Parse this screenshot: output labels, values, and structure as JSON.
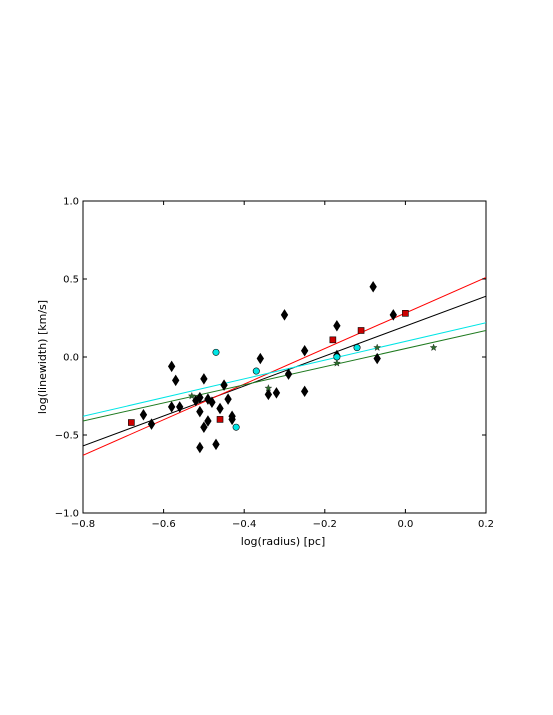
{
  "chart_data": {
    "type": "scatter",
    "title": "",
    "xlabel": "log(radius) [pc]",
    "ylabel": "log(linewidth) [km/s]",
    "xlim": [
      -0.8,
      0.2
    ],
    "ylim": [
      -1.0,
      1.0
    ],
    "xticks": [
      -0.8,
      -0.6,
      -0.4,
      -0.2,
      0.0,
      0.2
    ],
    "xtick_labels": [
      "−0.8",
      "−0.6",
      "−0.4",
      "−0.2",
      "0.0",
      "0.2"
    ],
    "yticks": [
      -1.0,
      -0.5,
      0.0,
      0.5,
      1.0
    ],
    "ytick_labels": [
      "−1.0",
      "−0.5",
      "0.0",
      "0.5",
      "1.0"
    ],
    "grid": false,
    "series": [
      {
        "marker": "diamond",
        "color": "#000000",
        "points": [
          [
            -0.65,
            -0.37
          ],
          [
            -0.63,
            -0.43
          ],
          [
            -0.58,
            -0.06
          ],
          [
            -0.57,
            -0.15
          ],
          [
            -0.56,
            -0.32
          ],
          [
            -0.58,
            -0.32
          ],
          [
            -0.52,
            -0.28
          ],
          [
            -0.51,
            -0.35
          ],
          [
            -0.51,
            -0.26
          ],
          [
            -0.5,
            -0.14
          ],
          [
            -0.5,
            -0.45
          ],
          [
            -0.49,
            -0.41
          ],
          [
            -0.49,
            -0.27
          ],
          [
            -0.48,
            -0.29
          ],
          [
            -0.47,
            -0.56
          ],
          [
            -0.51,
            -0.58
          ],
          [
            -0.46,
            -0.33
          ],
          [
            -0.45,
            -0.18
          ],
          [
            -0.44,
            -0.27
          ],
          [
            -0.43,
            -0.4
          ],
          [
            -0.43,
            -0.38
          ],
          [
            -0.36,
            -0.01
          ],
          [
            -0.34,
            -0.24
          ],
          [
            -0.32,
            -0.23
          ],
          [
            -0.3,
            0.27
          ],
          [
            -0.29,
            -0.11
          ],
          [
            -0.25,
            -0.22
          ],
          [
            -0.25,
            0.04
          ],
          [
            -0.17,
            0.01
          ],
          [
            -0.17,
            0.2
          ],
          [
            -0.08,
            0.45
          ],
          [
            -0.07,
            -0.01
          ],
          [
            -0.03,
            0.27
          ]
        ]
      },
      {
        "marker": "square",
        "color": "#cc0000",
        "points": [
          [
            -0.68,
            -0.42
          ],
          [
            -0.46,
            -0.4
          ],
          [
            -0.18,
            0.11
          ],
          [
            -0.11,
            0.17
          ],
          [
            0.0,
            0.28
          ]
        ]
      },
      {
        "marker": "circle",
        "color": "#00e5e5",
        "points": [
          [
            -0.47,
            0.03
          ],
          [
            -0.37,
            -0.09
          ],
          [
            -0.42,
            -0.45
          ],
          [
            -0.17,
            0.0
          ],
          [
            -0.12,
            0.06
          ]
        ]
      },
      {
        "marker": "star",
        "color": "#2e6b2e",
        "points": [
          [
            -0.53,
            -0.25
          ],
          [
            -0.34,
            -0.2
          ],
          [
            -0.17,
            -0.04
          ],
          [
            -0.07,
            0.06
          ],
          [
            0.07,
            0.06
          ]
        ]
      }
    ],
    "fit_lines": [
      {
        "color": "#000000",
        "x": [
          -0.8,
          0.2
        ],
        "y": [
          -0.57,
          0.39
        ]
      },
      {
        "color": "#ff0000",
        "x": [
          -0.8,
          0.2
        ],
        "y": [
          -0.63,
          0.51
        ]
      },
      {
        "color": "#00e5e5",
        "x": [
          -0.8,
          0.2
        ],
        "y": [
          -0.38,
          0.22
        ]
      },
      {
        "color": "#1f7a1f",
        "x": [
          -0.8,
          0.2
        ],
        "y": [
          -0.41,
          0.17
        ]
      }
    ]
  }
}
